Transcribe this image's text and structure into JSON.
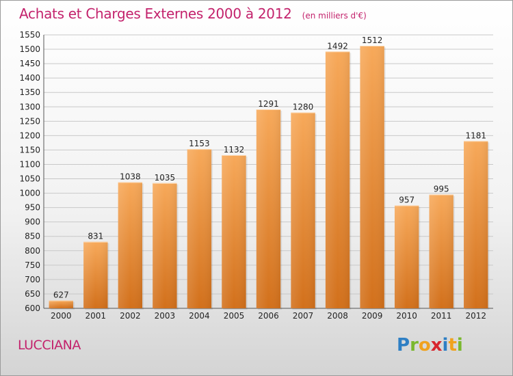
{
  "title": "Achats et Charges Externes 2000 à 2012",
  "unit": "(en milliers d'€)",
  "commune": "LUCCIANA",
  "logo": "Proxiti",
  "colors": {
    "title": "#c3226c",
    "bar_top": "#f7a95a",
    "bar_bottom": "#d2701b",
    "grid": "#c8c8c8"
  },
  "chart_data": {
    "type": "bar",
    "title": "Achats et Charges Externes 2000 à 2012",
    "subtitle": "(en milliers d'€)",
    "xlabel": "",
    "ylabel": "",
    "categories": [
      "2000",
      "2001",
      "2002",
      "2003",
      "2004",
      "2005",
      "2006",
      "2007",
      "2008",
      "2009",
      "2010",
      "2011",
      "2012"
    ],
    "values": [
      627,
      831,
      1038,
      1035,
      1153,
      1132,
      1291,
      1280,
      1492,
      1512,
      957,
      995,
      1181
    ],
    "ylim": [
      600,
      1550
    ],
    "yticks": [
      600,
      650,
      700,
      750,
      800,
      850,
      900,
      950,
      1000,
      1050,
      1100,
      1150,
      1200,
      1250,
      1300,
      1350,
      1400,
      1450,
      1500,
      1550
    ],
    "grid": true,
    "legend": "none"
  }
}
